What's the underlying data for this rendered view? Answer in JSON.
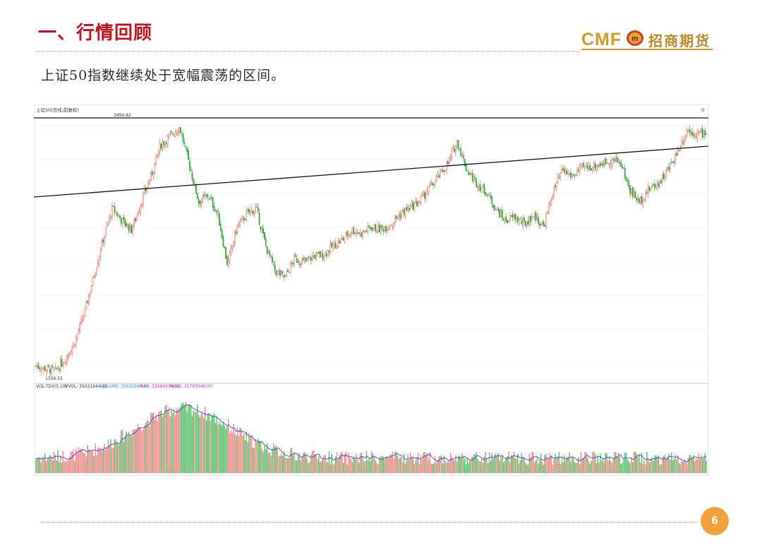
{
  "header": {
    "title": "一、行情回顾",
    "logo": {
      "brand": "CMF",
      "name_cn": "招商期货"
    }
  },
  "subtitle": "上证50指数继续处于宽幅震荡的区间。",
  "page_number": "6",
  "colors": {
    "title": "#c0121c",
    "accent": "#f2a23c",
    "logo": "#d29a2a",
    "up": "#e2463f",
    "down": "#2aa13a"
  },
  "chart_data": {
    "type": "candlestick",
    "price_panel": {
      "label": "上证50(日线,前复权)",
      "max_label": "3494.82",
      "min_label": "1556.55",
      "ylim": [
        1500,
        3560
      ],
      "close_path": [
        [
          0,
          1600
        ],
        [
          1,
          1580
        ],
        [
          2,
          1560
        ],
        [
          3,
          1650
        ],
        [
          4,
          1780
        ],
        [
          5,
          2000
        ],
        [
          6,
          2300
        ],
        [
          7,
          2600
        ],
        [
          8,
          2850
        ],
        [
          9,
          2750
        ],
        [
          10,
          2680
        ],
        [
          11,
          2900
        ],
        [
          12,
          3100
        ],
        [
          13,
          3350
        ],
        [
          14,
          3420
        ],
        [
          15,
          3494
        ],
        [
          16,
          3200
        ],
        [
          17,
          2900
        ],
        [
          18,
          2950
        ],
        [
          19,
          2800
        ],
        [
          20,
          2400
        ],
        [
          21,
          2700
        ],
        [
          22,
          2800
        ],
        [
          23,
          2850
        ],
        [
          24,
          2550
        ],
        [
          25,
          2350
        ],
        [
          26,
          2300
        ],
        [
          27,
          2450
        ],
        [
          28,
          2420
        ],
        [
          29,
          2470
        ],
        [
          30,
          2480
        ],
        [
          31,
          2550
        ],
        [
          32,
          2600
        ],
        [
          33,
          2680
        ],
        [
          34,
          2650
        ],
        [
          35,
          2700
        ],
        [
          36,
          2680
        ],
        [
          37,
          2720
        ],
        [
          38,
          2800
        ],
        [
          39,
          2850
        ],
        [
          40,
          2900
        ],
        [
          41,
          3000
        ],
        [
          42,
          3100
        ],
        [
          43,
          3200
        ],
        [
          44,
          3380
        ],
        [
          45,
          3150
        ],
        [
          46,
          3050
        ],
        [
          47,
          2980
        ],
        [
          48,
          2850
        ],
        [
          49,
          2750
        ],
        [
          50,
          2780
        ],
        [
          51,
          2720
        ],
        [
          52,
          2800
        ],
        [
          53,
          2700
        ],
        [
          54,
          2980
        ],
        [
          55,
          3150
        ],
        [
          56,
          3100
        ],
        [
          57,
          3170
        ],
        [
          58,
          3180
        ],
        [
          59,
          3200
        ],
        [
          60,
          3230
        ],
        [
          61,
          3220
        ],
        [
          62,
          3000
        ],
        [
          63,
          2900
        ],
        [
          64,
          3000
        ],
        [
          65,
          3050
        ],
        [
          66,
          3150
        ],
        [
          67,
          3300
        ],
        [
          68,
          3470
        ],
        [
          69,
          3440
        ],
        [
          70,
          3450
        ]
      ]
    },
    "volume_panel": {
      "label": "VOL-TDX(5,10)",
      "vvol": "VVOL: 35031944.00",
      "volume": "VOLUME: 35031944.00",
      "ma5": "MA5: 32689970.00",
      "ma10": "MA10: 31797040.00"
    }
  }
}
